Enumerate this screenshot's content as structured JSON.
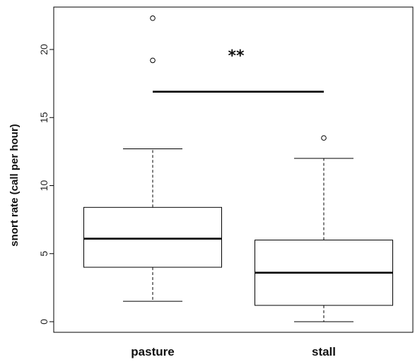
{
  "chart_data": {
    "type": "boxplot",
    "categories": [
      "pasture",
      "stall"
    ],
    "ylabel": "snort rate (call per hour)",
    "xlabel": "",
    "ylim": [
      0,
      22.4
    ],
    "yticks": [
      0,
      5,
      10,
      15,
      20
    ],
    "ytick_labels": [
      "0",
      "5",
      "10",
      "15",
      "20"
    ],
    "boxes": [
      {
        "name": "pasture",
        "whisker_low": 1.5,
        "q1": 4.0,
        "median": 6.1,
        "q3": 8.4,
        "whisker_high": 12.7,
        "outliers": [
          19.2,
          22.3
        ]
      },
      {
        "name": "stall",
        "whisker_low": 0.0,
        "q1": 1.2,
        "median": 3.6,
        "q3": 6.0,
        "whisker_high": 12.0,
        "outliers": [
          13.5
        ]
      }
    ],
    "significance": {
      "label": "**",
      "y": 16.9
    },
    "grid": false,
    "legend": "none"
  }
}
